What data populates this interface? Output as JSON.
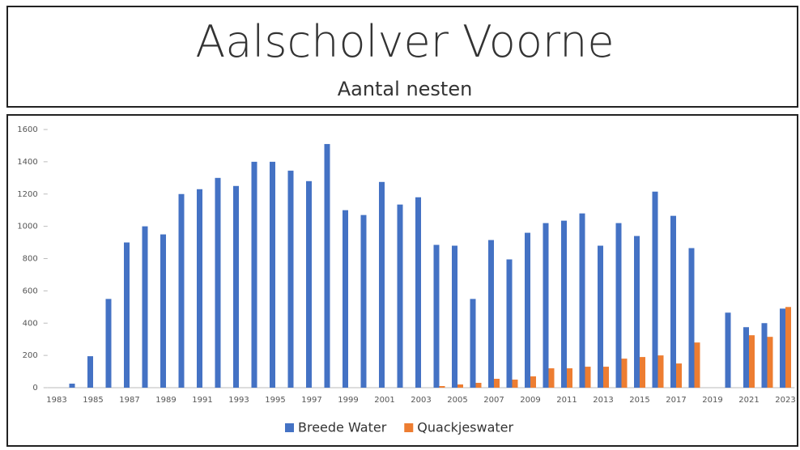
{
  "chart_data": {
    "type": "bar",
    "title": "Aalscholver Voorne",
    "subtitle": "Aantal nesten",
    "categories": [
      "1983",
      null,
      "1985",
      null,
      "1987",
      null,
      "1989",
      null,
      "1991",
      null,
      "1993",
      null,
      "1995",
      null,
      "1997",
      null,
      "1999",
      null,
      "2001",
      null,
      "2003",
      null,
      "2005",
      null,
      "2007",
      null,
      "2009",
      null,
      "2011",
      null,
      "2013",
      null,
      "2015",
      null,
      "2017",
      null,
      "2019",
      null,
      "2021",
      null,
      "2023"
    ],
    "series": [
      {
        "name": "Breede Water",
        "color": "#4472c4",
        "values": [
          0,
          25,
          195,
          550,
          900,
          1000,
          950,
          1200,
          1230,
          1300,
          1250,
          1400,
          1400,
          1345,
          1280,
          1510,
          1100,
          1070,
          1275,
          1135,
          1180,
          885,
          880,
          550,
          915,
          795,
          960,
          1020,
          1035,
          1080,
          880,
          1020,
          940,
          1215,
          1065,
          865,
          0,
          465,
          375,
          400,
          490
        ]
      },
      {
        "name": "Quackjeswater",
        "color": "#ed7d31",
        "values": [
          0,
          0,
          0,
          0,
          0,
          0,
          0,
          0,
          0,
          0,
          0,
          0,
          0,
          0,
          0,
          0,
          0,
          0,
          0,
          0,
          0,
          10,
          20,
          30,
          55,
          50,
          70,
          120,
          120,
          130,
          130,
          180,
          190,
          200,
          150,
          280,
          0,
          0,
          325,
          315,
          500
        ]
      }
    ],
    "ylim": [
      0,
      1600
    ],
    "yticks": [
      0,
      200,
      400,
      600,
      800,
      1000,
      1200,
      1400,
      1600
    ],
    "legend": "bottom"
  }
}
